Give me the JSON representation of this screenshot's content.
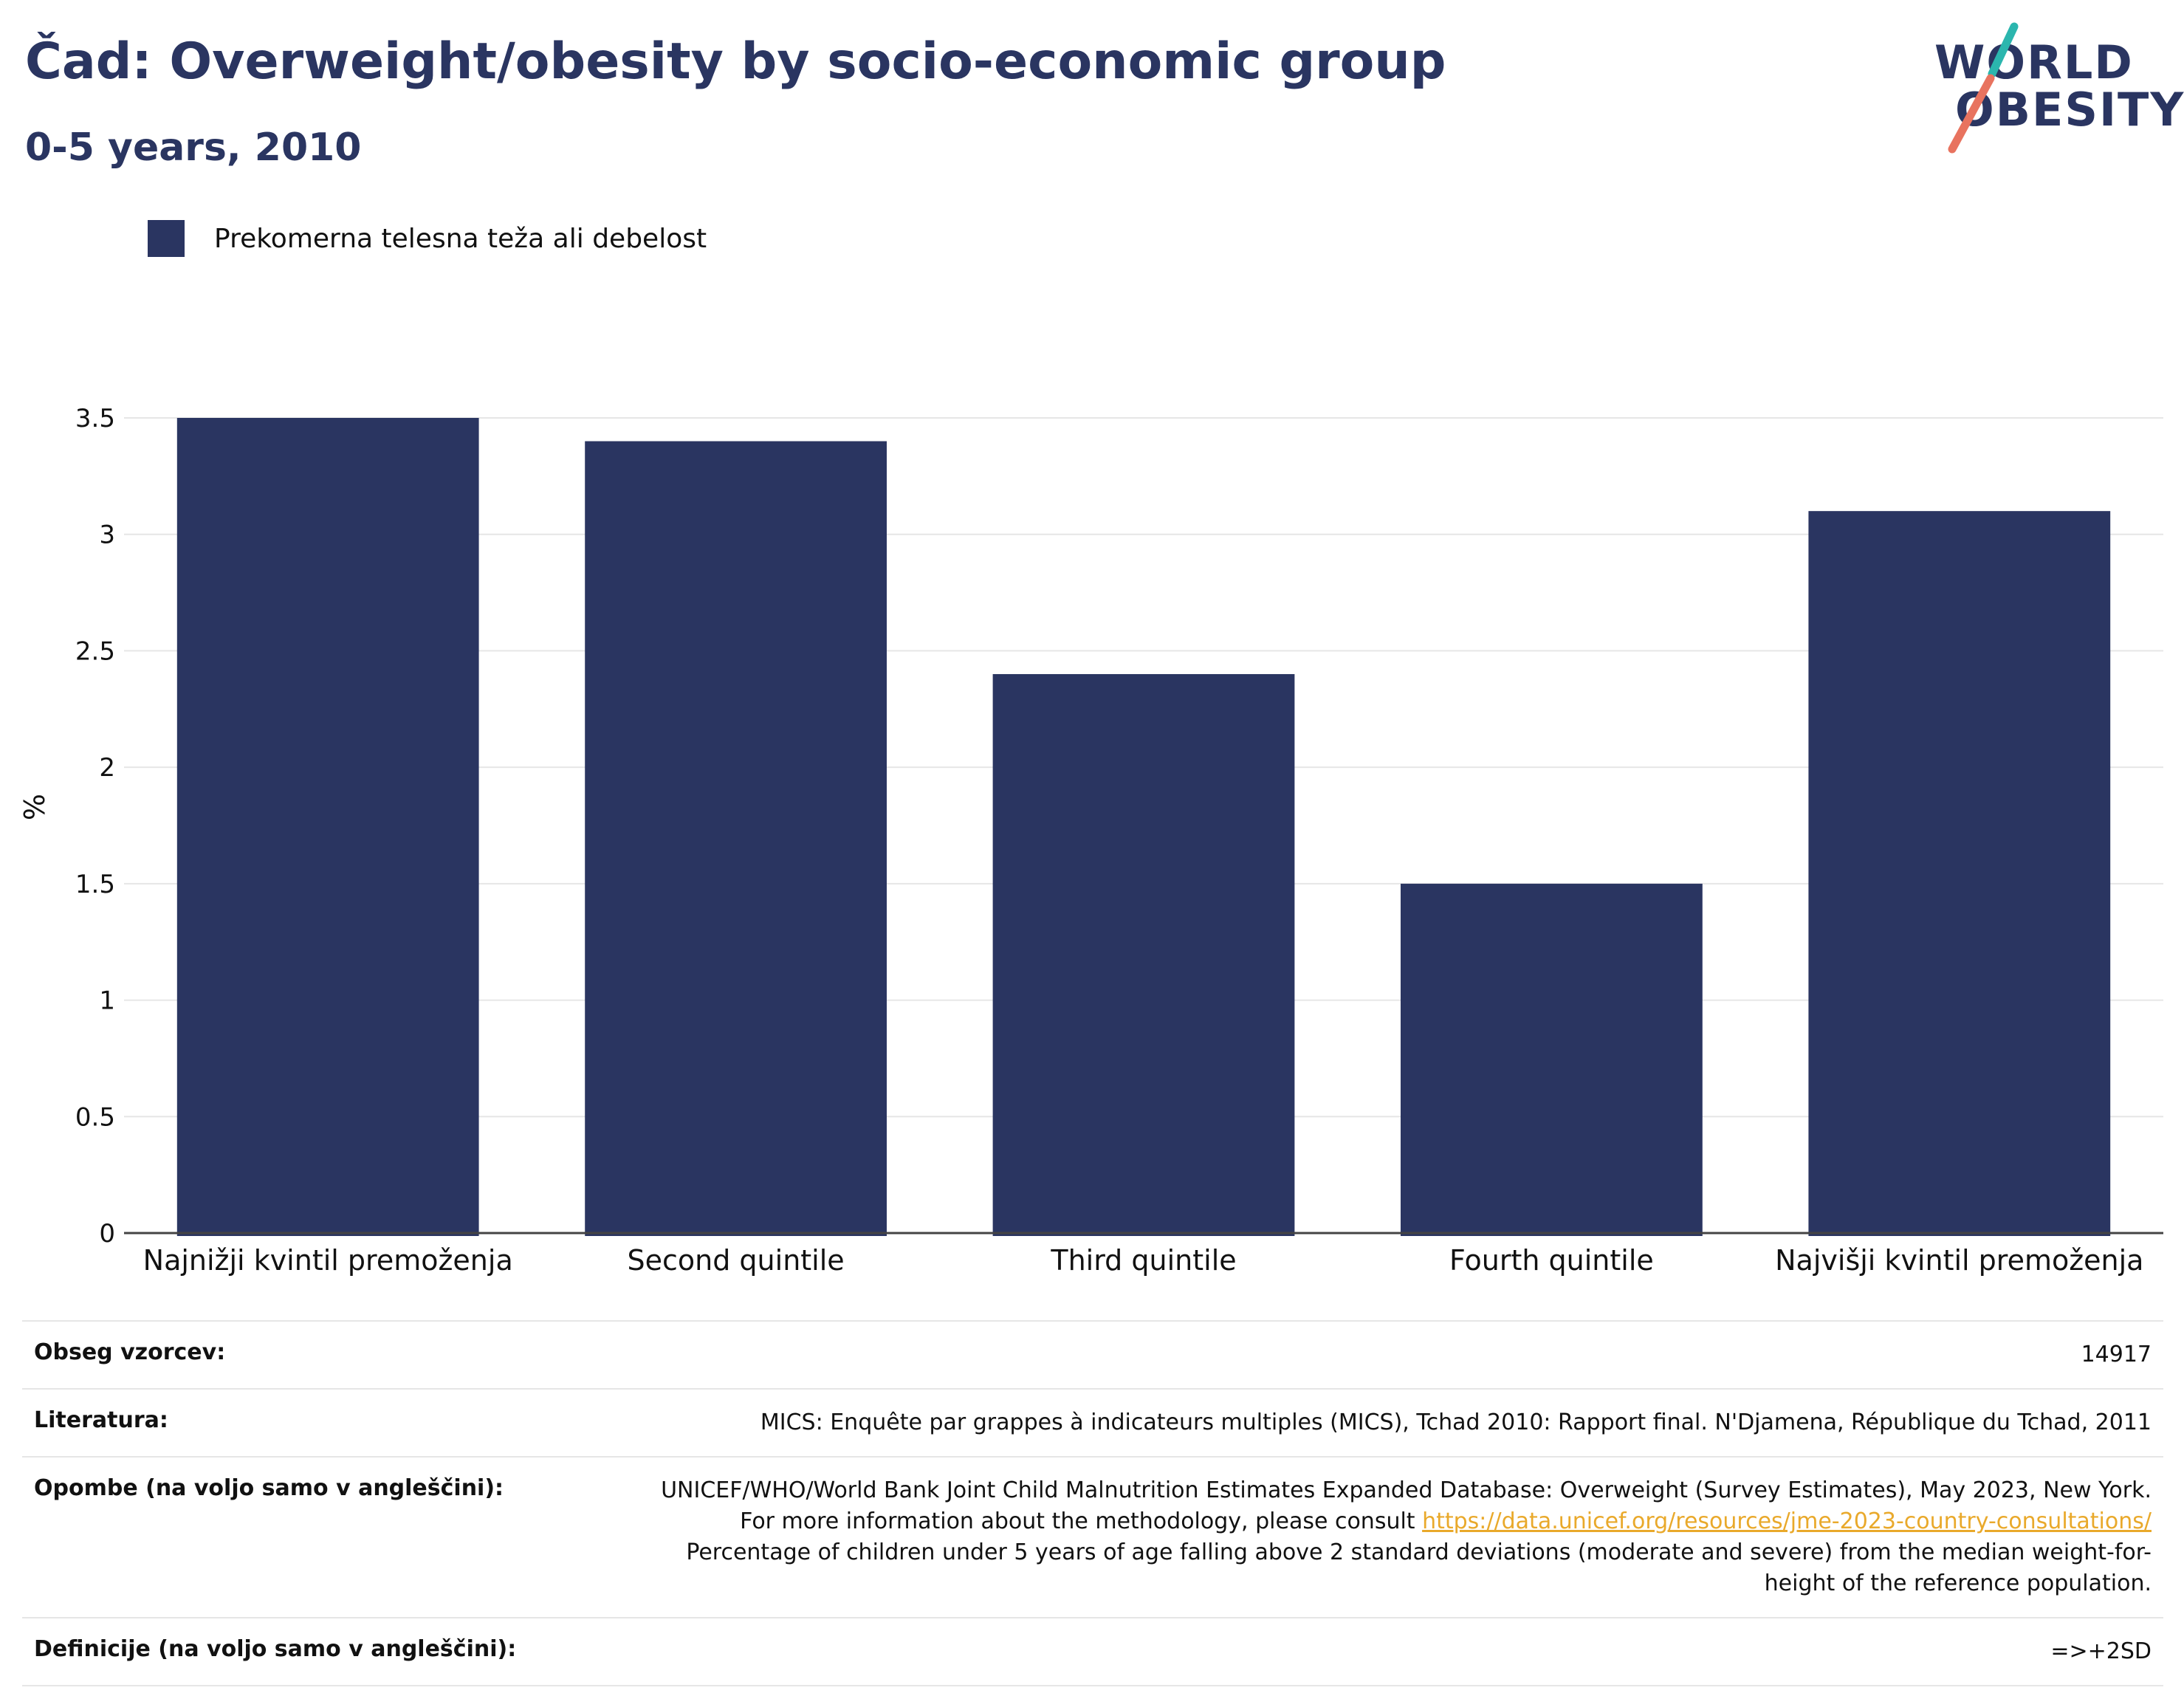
{
  "header": {
    "title": "Čad: Overweight/obesity by socio-economic group",
    "subtitle": "0-5 years, 2010"
  },
  "logo": {
    "line1": "WORLD",
    "line2": "OBESITY",
    "colors": {
      "navy": "#2a3561",
      "teal": "#2bb6ae",
      "coral": "#e8735f"
    }
  },
  "legend": {
    "entries": [
      {
        "label": "Prekomerna telesna teža ali debelost",
        "color": "#2a3561"
      }
    ],
    "position": "top-left"
  },
  "chart_data": {
    "type": "bar",
    "categories": [
      "Najnižji kvintil premoženja",
      "Second quintile",
      "Third quintile",
      "Fourth quintile",
      "Najvišji kvintil premoženja"
    ],
    "series": [
      {
        "name": "Prekomerna telesna teža ali debelost",
        "values": [
          3.5,
          3.4,
          2.4,
          1.5,
          3.1
        ],
        "color": "#2a3561"
      }
    ],
    "ylabel": "%",
    "ylim": [
      0,
      3.5
    ],
    "yticks": [
      0,
      0.5,
      1,
      1.5,
      2,
      2.5,
      3,
      3.5
    ],
    "ytick_labels": [
      "0",
      "0.5",
      "1",
      "1.5",
      "2",
      "2.5",
      "3",
      "3.5"
    ],
    "grid": true,
    "colors": {
      "grid": "#e6e6e6",
      "axis": "#444444"
    }
  },
  "info": {
    "rows": [
      {
        "label": "Obseg vzorcev:",
        "value": "14917"
      },
      {
        "label": "Literatura:",
        "value": "MICS: Enquête par grappes à indicateurs multiples (MICS), Tchad 2010: Rapport final. N'Djamena, République du Tchad, 2011"
      },
      {
        "label": "Opombe (na voljo samo v angleščini):",
        "value_before": "UNICEF/WHO/World Bank Joint Child Malnutrition Estimates Expanded Database: Overweight (Survey Estimates), May 2023, New York. For more information about the methodology, please consult ",
        "link": "https://data.unicef.org/resources/jme-2023-country-consultations/",
        "value_after": " Percentage of children under 5 years of age falling above 2 standard deviations (moderate and severe) from the median weight-for-height of the reference population."
      },
      {
        "label": "Definicije (na voljo samo v angleščini):",
        "value": "=>+2SD"
      }
    ],
    "link_color": "#e9a92b"
  }
}
